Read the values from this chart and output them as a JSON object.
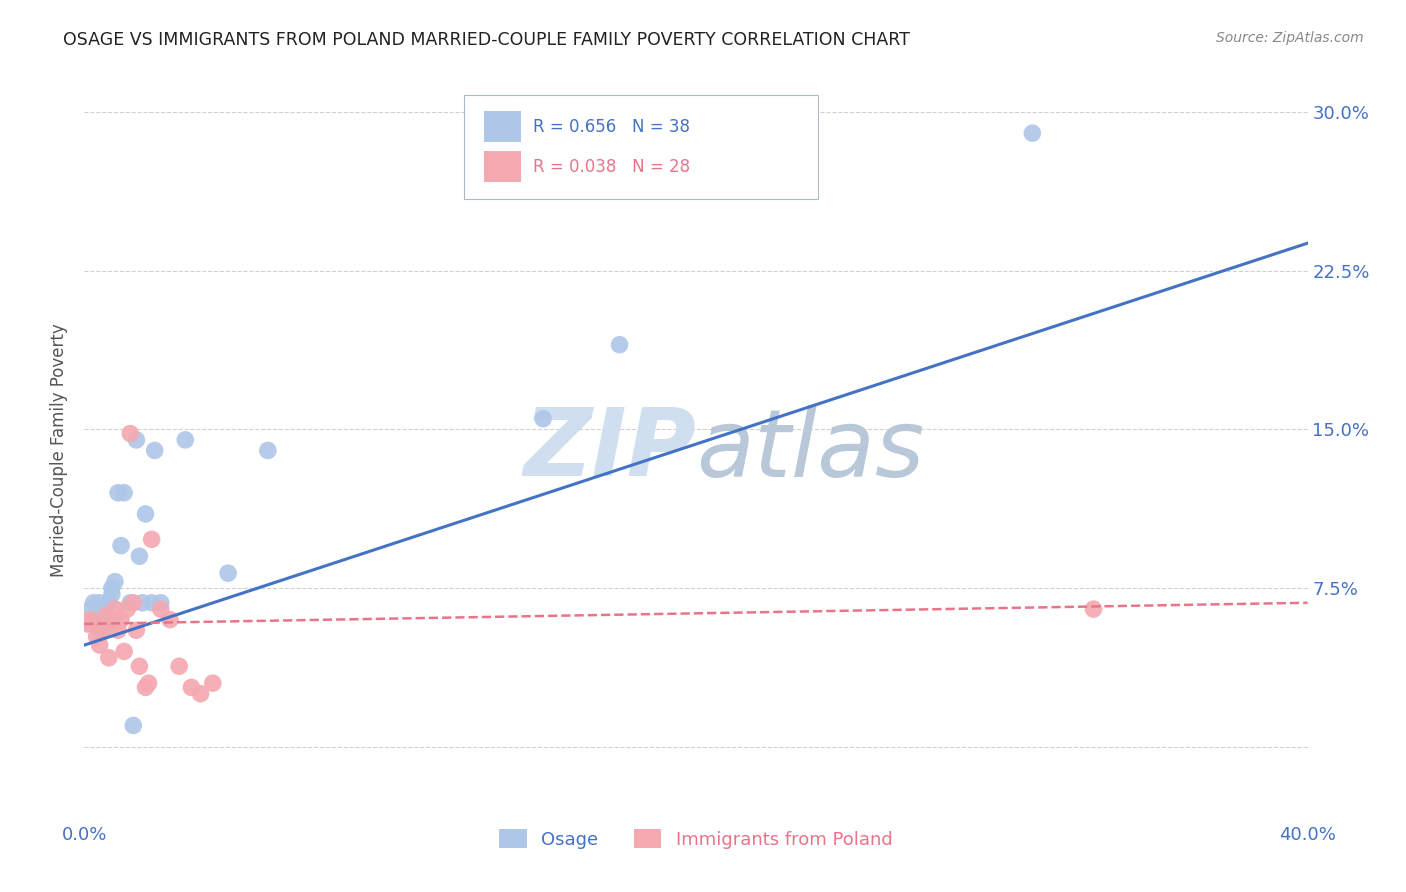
{
  "title": "OSAGE VS IMMIGRANTS FROM POLAND MARRIED-COUPLE FAMILY POVERTY CORRELATION CHART",
  "source": "Source: ZipAtlas.com",
  "ylabel": "Married-Couple Family Poverty",
  "x_min": 0.0,
  "x_max": 0.4,
  "y_min": -0.035,
  "y_max": 0.315,
  "x_ticks": [
    0.0,
    0.05,
    0.1,
    0.15,
    0.2,
    0.25,
    0.3,
    0.35,
    0.4
  ],
  "y_ticks": [
    0.0,
    0.075,
    0.15,
    0.225,
    0.3
  ],
  "y_tick_labels": [
    "",
    "7.5%",
    "15.0%",
    "22.5%",
    "30.0%"
  ],
  "osage_scatter_x": [
    0.001,
    0.002,
    0.002,
    0.003,
    0.003,
    0.004,
    0.004,
    0.005,
    0.005,
    0.005,
    0.006,
    0.006,
    0.007,
    0.007,
    0.008,
    0.008,
    0.009,
    0.009,
    0.01,
    0.01,
    0.011,
    0.012,
    0.013,
    0.015,
    0.016,
    0.017,
    0.018,
    0.019,
    0.02,
    0.022,
    0.023,
    0.025,
    0.033,
    0.047,
    0.06,
    0.15,
    0.175,
    0.31
  ],
  "osage_scatter_y": [
    0.06,
    0.058,
    0.065,
    0.06,
    0.068,
    0.058,
    0.06,
    0.055,
    0.062,
    0.068,
    0.055,
    0.062,
    0.06,
    0.065,
    0.06,
    0.068,
    0.075,
    0.072,
    0.078,
    0.06,
    0.12,
    0.095,
    0.12,
    0.068,
    0.01,
    0.145,
    0.09,
    0.068,
    0.11,
    0.068,
    0.14,
    0.068,
    0.145,
    0.082,
    0.14,
    0.155,
    0.19,
    0.29
  ],
  "poland_scatter_x": [
    0.001,
    0.002,
    0.003,
    0.004,
    0.005,
    0.006,
    0.007,
    0.008,
    0.009,
    0.01,
    0.011,
    0.012,
    0.013,
    0.014,
    0.015,
    0.016,
    0.017,
    0.018,
    0.02,
    0.021,
    0.022,
    0.025,
    0.028,
    0.031,
    0.035,
    0.038,
    0.042,
    0.33
  ],
  "poland_scatter_y": [
    0.058,
    0.06,
    0.058,
    0.052,
    0.048,
    0.055,
    0.062,
    0.042,
    0.058,
    0.065,
    0.055,
    0.06,
    0.045,
    0.065,
    0.148,
    0.068,
    0.055,
    0.038,
    0.028,
    0.03,
    0.098,
    0.065,
    0.06,
    0.038,
    0.028,
    0.025,
    0.03,
    0.065
  ],
  "osage_line_x": [
    0.0,
    0.4
  ],
  "osage_line_y": [
    0.048,
    0.238
  ],
  "poland_line_x": [
    0.0,
    0.4
  ],
  "poland_line_y": [
    0.058,
    0.068
  ],
  "scatter_color_osage": "#aec6e8",
  "scatter_color_poland": "#f4a8b0",
  "line_color_osage": "#4472c4",
  "line_color_poland": "#e8748a",
  "watermark_color": "#d0dff0",
  "background_color": "#ffffff",
  "grid_color": "#d0d0d0",
  "title_color": "#222222",
  "axis_label_color": "#555555",
  "tick_label_color": "#4472c4",
  "legend_label_color_blue": "#4472c4",
  "legend_label_color_pink": "#e8748a",
  "source_color": "#888888"
}
